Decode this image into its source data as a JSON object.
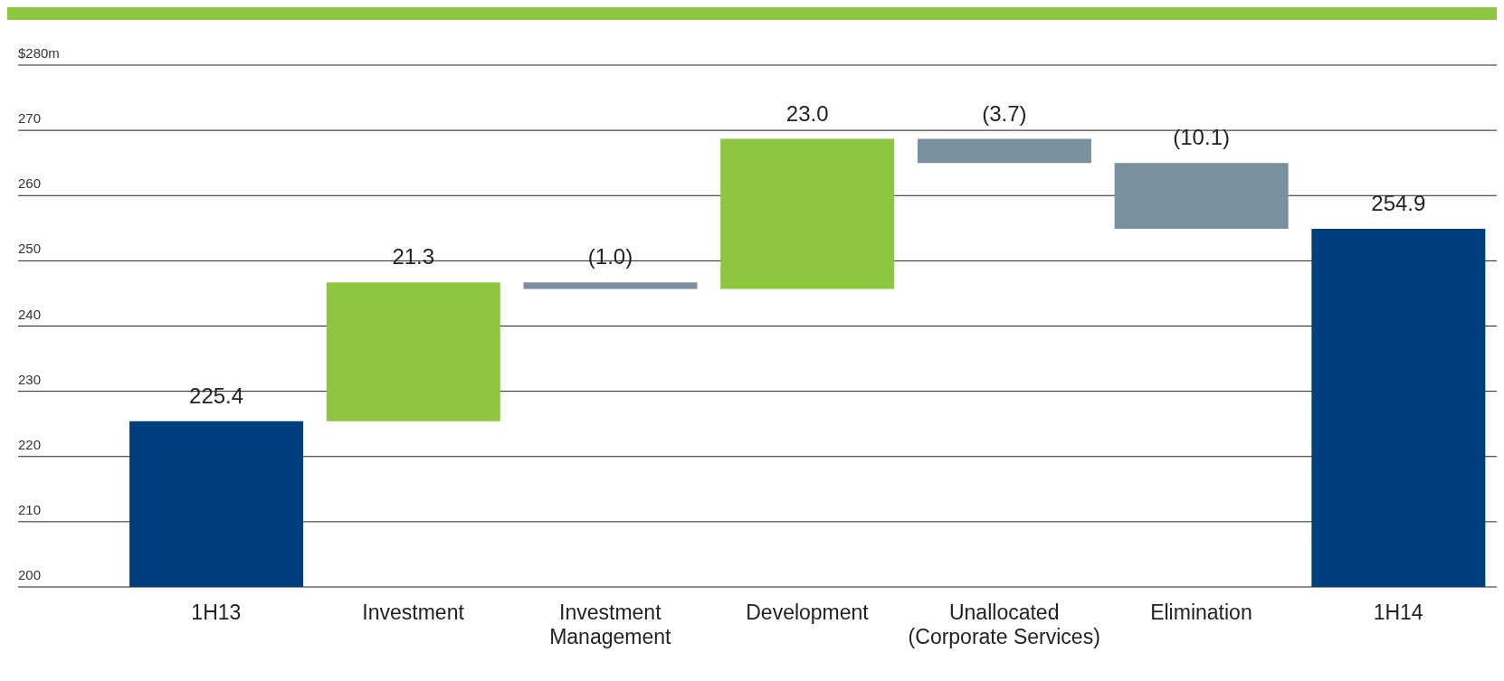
{
  "chart_data": {
    "type": "bar",
    "categories": [
      "1H13",
      "Investment",
      "Investment Management",
      "Development",
      "Unallocated (Corporate Services)",
      "Elimination",
      "1H14"
    ],
    "values": [
      225.4,
      21.3,
      -1.0,
      23.0,
      -3.7,
      -10.1,
      254.9
    ],
    "base": [
      0,
      225.4,
      246.7,
      245.7,
      268.7,
      265.0,
      0
    ],
    "colors": [
      "#003f7d",
      "#8dc63f",
      "#7a909e",
      "#8dc63f",
      "#7a909e",
      "#7a909e",
      "#003f7d"
    ],
    "value_labels": [
      "225.4",
      "21.3",
      "(1.0)",
      "23.0",
      "(3.7)",
      "(10.1)",
      "254.9"
    ],
    "ylim": [
      200,
      280
    ],
    "yticks": [
      200,
      210,
      220,
      230,
      240,
      250,
      260,
      270,
      {
        "value": 280,
        "label": "$280m"
      }
    ],
    "grid": "y"
  }
}
